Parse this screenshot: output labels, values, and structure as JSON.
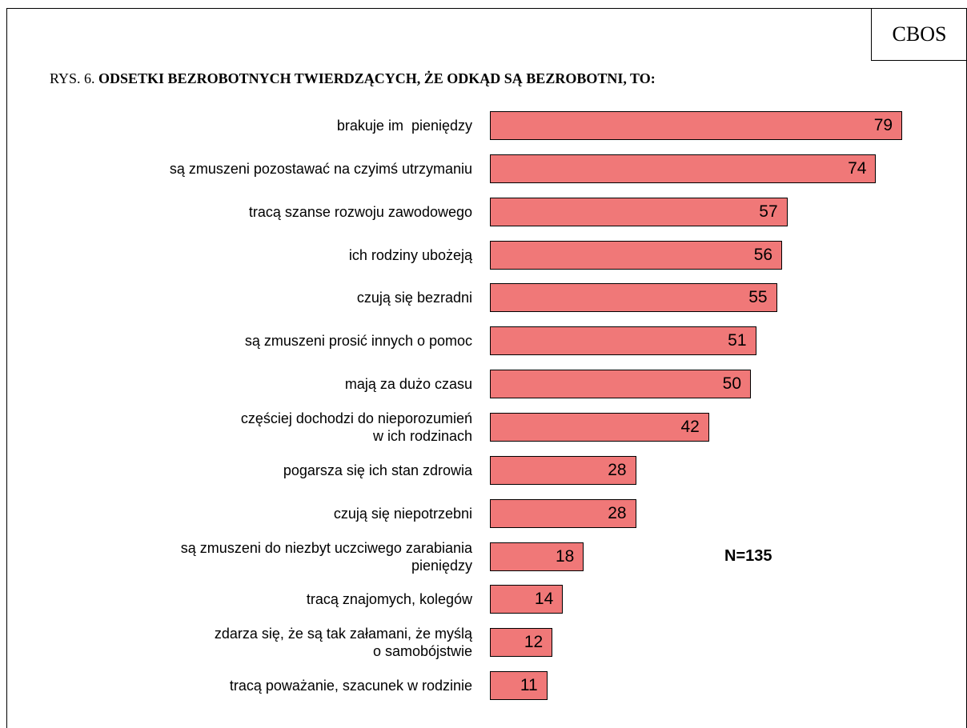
{
  "chart_data": {
    "type": "bar",
    "source": "CBOS",
    "figure_label": "RYS. 6.",
    "title": "ODSETKI BEZROBOTNYCH TWIERDZĄCYCH, ŻE ODKĄD SĄ BEZROBOTNI, TO:",
    "categories": [
      "brakuje im  pieniędzy",
      "są zmuszeni pozostawać na czyimś utrzymaniu",
      "tracą szanse rozwoju zawodowego",
      "ich rodziny ubożeją",
      "czują się bezradni",
      "są zmuszeni prosić innych o pomoc",
      "mają za dużo czasu",
      "częściej dochodzi do nieporozumień\nw ich rodzinach",
      "pogarsza się ich stan zdrowia",
      "czują się niepotrzebni",
      "są zmuszeni do niezbyt uczciwego zarabiania\npieniędzy",
      "tracą znajomych, kolegów",
      "zdarza się, że są tak załamani, że myślą\no samobójstwie",
      "tracą poważanie, szacunek w rodzinie"
    ],
    "values": [
      79,
      74,
      57,
      56,
      55,
      51,
      50,
      42,
      28,
      28,
      18,
      14,
      12,
      11
    ],
    "color": "#f07878",
    "annotation": "N=135"
  }
}
